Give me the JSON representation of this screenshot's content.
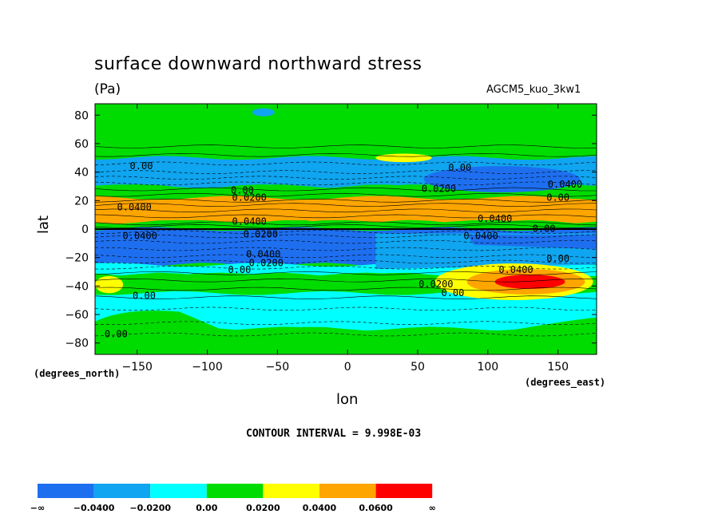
{
  "chart_data": {
    "type": "heatmap",
    "title": "surface downward northward stress",
    "units": "(Pa)",
    "model_label": "AGCM5_kuo_3kw1",
    "xlabel": "lon",
    "ylabel": "lat",
    "x_units": "(degrees_east)",
    "y_units": "(degrees_north)",
    "xlim": [
      -180,
      177.5
    ],
    "ylim": [
      -88,
      88
    ],
    "x_ticks": [
      -150,
      -100,
      -50,
      0,
      50,
      100,
      150
    ],
    "y_ticks": [
      80,
      60,
      40,
      20,
      0,
      -20,
      -40,
      -60,
      -80
    ],
    "x_tick_labels": [
      "−150",
      "−100",
      "−50",
      "0",
      "50",
      "100",
      "150"
    ],
    "y_tick_labels": [
      "80",
      "60",
      "40",
      "20",
      "0",
      "−20",
      "−40",
      "−60",
      "−80"
    ],
    "contour_interval": "CONTOUR INTERVAL = 9.998E-03",
    "color_levels": [
      {
        "label": "−∞",
        "color": "#1e6ff0"
      },
      {
        "label": "−0.0400",
        "color": "#0fa5f0"
      },
      {
        "label": "−0.0200",
        "color": "#00ffff"
      },
      {
        "label": "0.00",
        "color": "#00dc00"
      },
      {
        "label": "0.0200",
        "color": "#ffff00"
      },
      {
        "label": "0.0400",
        "color": "#ffa500"
      },
      {
        "label": "0.0600",
        "color": "#ff0000"
      },
      {
        "label": "∞",
        "color": ""
      }
    ],
    "zonal_bands": [
      {
        "lat_from": 88,
        "lat_to": 50,
        "value": 0.005
      },
      {
        "lat_from": 50,
        "lat_to": 30,
        "value": -0.03
      },
      {
        "lat_from": 30,
        "lat_to": 22,
        "value": 0.01
      },
      {
        "lat_from": 22,
        "lat_to": 5,
        "value": 0.045
      },
      {
        "lat_from": 5,
        "lat_to": 0,
        "value": 0.015
      },
      {
        "lat_from": 0,
        "lat_to": -25,
        "value": -0.045
      },
      {
        "lat_from": -25,
        "lat_to": -32,
        "value": -0.01
      },
      {
        "lat_from": -32,
        "lat_to": -45,
        "value": 0.005
      },
      {
        "lat_from": -45,
        "lat_to": -70,
        "value": -0.015
      },
      {
        "lat_from": -70,
        "lat_to": -88,
        "value": 0.005
      }
    ],
    "regional_features": [
      {
        "name": "nh-positive-patch",
        "lon": [
          20,
          60
        ],
        "lat": [
          53,
          47
        ],
        "value": 0.025
      },
      {
        "name": "nh-negative-core",
        "lon": [
          60,
          160
        ],
        "lat": [
          42,
          28
        ],
        "value": -0.045
      },
      {
        "name": "sh-positive-core",
        "lon": [
          105,
          155
        ],
        "lat": [
          -32,
          -42
        ],
        "value": 0.065
      },
      {
        "name": "sh-positive-west",
        "lon": [
          -180,
          -160
        ],
        "lat": [
          -33,
          -45
        ],
        "value": 0.025
      }
    ],
    "contour_labels": [
      {
        "text": "0.00",
        "lon": -147,
        "lat": 44
      },
      {
        "text": "0.00",
        "lon": -75,
        "lat": 27
      },
      {
        "text": "0.0200",
        "lon": -70,
        "lat": 22
      },
      {
        "text": "0.0400",
        "lon": -152,
        "lat": 15
      },
      {
        "text": "0.0400",
        "lon": -70,
        "lat": 5
      },
      {
        "text": "0.0200",
        "lon": -62,
        "lat": -4
      },
      {
        "text": "0.0400",
        "lon": -148,
        "lat": -5
      },
      {
        "text": "0.0400",
        "lon": -60,
        "lat": -18
      },
      {
        "text": "0.0200",
        "lon": -58,
        "lat": -24
      },
      {
        "text": "0.00",
        "lon": -77,
        "lat": -29
      },
      {
        "text": "0.00",
        "lon": -145,
        "lat": -47
      },
      {
        "text": "0.00",
        "lon": -165,
        "lat": -74
      },
      {
        "text": "0.00",
        "lon": 80,
        "lat": 43
      },
      {
        "text": "0.0200",
        "lon": 65,
        "lat": 28
      },
      {
        "text": "0.0400",
        "lon": 155,
        "lat": 31
      },
      {
        "text": "0.00",
        "lon": 150,
        "lat": 22
      },
      {
        "text": "0.0400",
        "lon": 105,
        "lat": 7
      },
      {
        "text": "0.0400",
        "lon": 95,
        "lat": -5
      },
      {
        "text": "0.00",
        "lon": 140,
        "lat": 0
      },
      {
        "text": "0.00",
        "lon": 150,
        "lat": -21
      },
      {
        "text": "0.0400",
        "lon": 120,
        "lat": -29
      },
      {
        "text": "0.0200",
        "lon": 63,
        "lat": -39
      },
      {
        "text": "0.00",
        "lon": 75,
        "lat": -45
      }
    ]
  }
}
